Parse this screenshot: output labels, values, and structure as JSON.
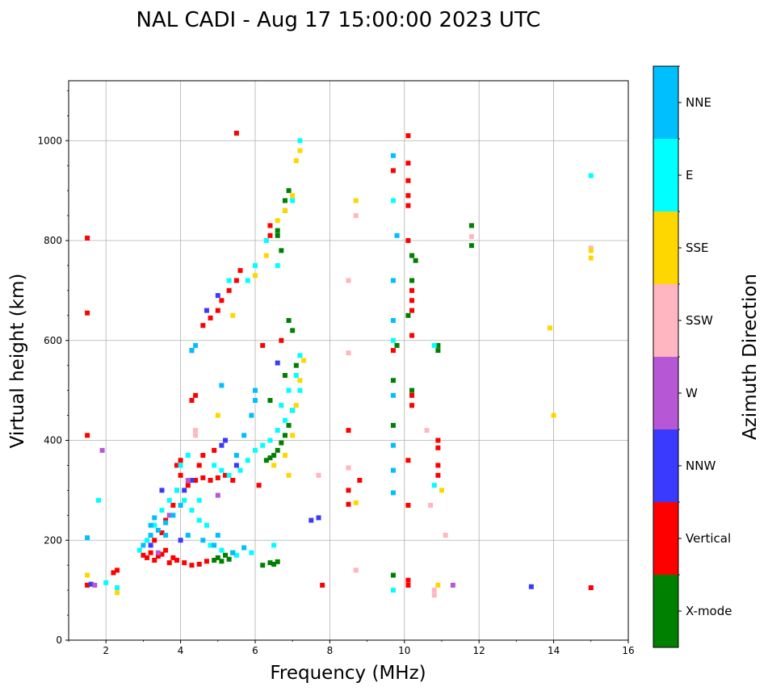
{
  "chart_data": {
    "type": "scatter",
    "title": "NAL CADI - Aug 17 15:00:00 2023 UTC",
    "xlabel": "Frequency (MHz)",
    "ylabel": "Virtual height (km)",
    "xlim": [
      1,
      16
    ],
    "ylim": [
      0,
      1120
    ],
    "xticks": [
      "2",
      "4",
      "6",
      "8",
      "10",
      "12",
      "14",
      "16"
    ],
    "yticks": [
      "0",
      "200",
      "400",
      "600",
      "800",
      "1000"
    ],
    "grid": true,
    "colorbar": {
      "label": "Azimuth Direction",
      "categories": [
        {
          "name": "X-mode",
          "color": "#008000"
        },
        {
          "name": "Vertical",
          "color": "#ff0000"
        },
        {
          "name": "NNW",
          "color": "#3a3aff"
        },
        {
          "name": "W",
          "color": "#b657d6"
        },
        {
          "name": "SSW",
          "color": "#ffb6c1"
        },
        {
          "name": "SSE",
          "color": "#ffd700"
        },
        {
          "name": "E",
          "color": "#00ffff"
        },
        {
          "name": "NNE",
          "color": "#00bfff"
        }
      ]
    },
    "series": [
      {
        "name": "X-mode",
        "points": [
          [
            4.9,
            160
          ],
          [
            5.0,
            165
          ],
          [
            5.1,
            158
          ],
          [
            5.2,
            170
          ],
          [
            5.3,
            162
          ],
          [
            5.4,
            175
          ],
          [
            6.2,
            150
          ],
          [
            6.4,
            155
          ],
          [
            6.5,
            152
          ],
          [
            6.6,
            157
          ],
          [
            6.3,
            360
          ],
          [
            6.4,
            365
          ],
          [
            6.5,
            370
          ],
          [
            6.6,
            380
          ],
          [
            6.7,
            395
          ],
          [
            6.8,
            410
          ],
          [
            6.9,
            430
          ],
          [
            7.0,
            460
          ],
          [
            6.6,
            810
          ],
          [
            6.6,
            820
          ],
          [
            6.8,
            860
          ],
          [
            6.8,
            880
          ],
          [
            6.9,
            900
          ],
          [
            6.7,
            780
          ],
          [
            10.1,
            650
          ],
          [
            10.2,
            720
          ],
          [
            10.3,
            760
          ],
          [
            10.2,
            500
          ],
          [
            10.9,
            580
          ],
          [
            10.9,
            590
          ],
          [
            11.8,
            830
          ],
          [
            11.8,
            790
          ],
          [
            9.7,
            130
          ],
          [
            9.7,
            430
          ],
          [
            9.7,
            520
          ],
          [
            9.8,
            590
          ],
          [
            6.4,
            480
          ],
          [
            6.8,
            530
          ],
          [
            7.1,
            550
          ],
          [
            6.9,
            640
          ],
          [
            7.0,
            620
          ],
          [
            10.2,
            770
          ]
        ]
      },
      {
        "name": "Vertical",
        "points": [
          [
            3.0,
            170
          ],
          [
            3.1,
            165
          ],
          [
            3.2,
            175
          ],
          [
            3.3,
            160
          ],
          [
            3.4,
            168
          ],
          [
            3.5,
            172
          ],
          [
            3.6,
            180
          ],
          [
            3.7,
            155
          ],
          [
            3.8,
            165
          ],
          [
            3.9,
            160
          ],
          [
            4.1,
            155
          ],
          [
            4.3,
            150
          ],
          [
            4.5,
            152
          ],
          [
            4.7,
            158
          ],
          [
            3.3,
            200
          ],
          [
            3.5,
            215
          ],
          [
            3.6,
            240
          ],
          [
            3.8,
            270
          ],
          [
            3.9,
            300
          ],
          [
            4.0,
            330
          ],
          [
            4.2,
            310
          ],
          [
            4.4,
            320
          ],
          [
            4.6,
            325
          ],
          [
            4.8,
            320
          ],
          [
            5.0,
            325
          ],
          [
            5.2,
            330
          ],
          [
            5.4,
            320
          ],
          [
            3.9,
            350
          ],
          [
            4.0,
            360
          ],
          [
            4.5,
            350
          ],
          [
            4.6,
            370
          ],
          [
            4.9,
            380
          ],
          [
            4.3,
            480
          ],
          [
            4.4,
            490
          ],
          [
            4.6,
            630
          ],
          [
            4.8,
            645
          ],
          [
            5.0,
            660
          ],
          [
            5.1,
            680
          ],
          [
            5.3,
            700
          ],
          [
            5.5,
            720
          ],
          [
            5.6,
            740
          ],
          [
            6.1,
            310
          ],
          [
            6.4,
            830
          ],
          [
            6.4,
            810
          ],
          [
            1.5,
            805
          ],
          [
            1.5,
            655
          ],
          [
            1.5,
            410
          ],
          [
            1.5,
            110
          ],
          [
            2.2,
            135
          ],
          [
            2.3,
            140
          ],
          [
            5.5,
            1015
          ],
          [
            8.5,
            420
          ],
          [
            8.5,
            300
          ],
          [
            8.5,
            272
          ],
          [
            10.1,
            1010
          ],
          [
            10.1,
            955
          ],
          [
            10.1,
            920
          ],
          [
            10.1,
            890
          ],
          [
            10.1,
            870
          ],
          [
            10.1,
            800
          ],
          [
            10.2,
            700
          ],
          [
            10.2,
            680
          ],
          [
            10.2,
            660
          ],
          [
            10.2,
            610
          ],
          [
            10.2,
            490
          ],
          [
            10.2,
            470
          ],
          [
            10.1,
            360
          ],
          [
            10.1,
            270
          ],
          [
            10.1,
            120
          ],
          [
            10.1,
            110
          ],
          [
            10.9,
            400
          ],
          [
            10.9,
            385
          ],
          [
            10.9,
            350
          ],
          [
            10.9,
            330
          ],
          [
            15.0,
            105
          ],
          [
            7.8,
            110
          ],
          [
            9.7,
            940
          ],
          [
            9.7,
            580
          ],
          [
            6.2,
            590
          ],
          [
            6.7,
            600
          ],
          [
            8.8,
            320
          ]
        ]
      },
      {
        "name": "NNW",
        "points": [
          [
            4.1,
            300
          ],
          [
            4.3,
            320
          ],
          [
            5.2,
            400
          ],
          [
            5.1,
            390
          ],
          [
            5.5,
            350
          ],
          [
            4.7,
            660
          ],
          [
            5.0,
            690
          ],
          [
            4.3,
            580
          ],
          [
            7.5,
            240
          ],
          [
            7.7,
            245
          ],
          [
            13.4,
            107
          ],
          [
            1.6,
            112
          ],
          [
            6.6,
            555
          ],
          [
            3.5,
            300
          ],
          [
            3.2,
            190
          ],
          [
            4.0,
            200
          ]
        ]
      },
      {
        "name": "W",
        "points": [
          [
            3.4,
            175
          ],
          [
            3.7,
            250
          ],
          [
            4.2,
            320
          ],
          [
            5.0,
            290
          ],
          [
            11.3,
            110
          ],
          [
            1.9,
            380
          ],
          [
            1.7,
            110
          ]
        ]
      },
      {
        "name": "SSW",
        "points": [
          [
            4.4,
            420
          ],
          [
            4.4,
            410
          ],
          [
            8.5,
            720
          ],
          [
            8.5,
            575
          ],
          [
            8.5,
            345
          ],
          [
            8.7,
            140
          ],
          [
            10.6,
            420
          ],
          [
            10.7,
            270
          ],
          [
            11.1,
            210
          ],
          [
            10.8,
            100
          ],
          [
            10.8,
            90
          ],
          [
            11.8,
            808
          ],
          [
            15.0,
            785
          ],
          [
            7.7,
            330
          ],
          [
            8.7,
            850
          ]
        ]
      },
      {
        "name": "SSE",
        "points": [
          [
            5.0,
            450
          ],
          [
            5.4,
            650
          ],
          [
            6.0,
            730
          ],
          [
            6.3,
            770
          ],
          [
            6.6,
            840
          ],
          [
            6.8,
            860
          ],
          [
            7.0,
            890
          ],
          [
            7.1,
            960
          ],
          [
            7.2,
            980
          ],
          [
            6.9,
            330
          ],
          [
            7.0,
            410
          ],
          [
            7.1,
            470
          ],
          [
            7.2,
            520
          ],
          [
            7.3,
            560
          ],
          [
            8.7,
            275
          ],
          [
            8.7,
            880
          ],
          [
            10.9,
            110
          ],
          [
            11.0,
            300
          ],
          [
            13.9,
            625
          ],
          [
            14.0,
            450
          ],
          [
            15.0,
            780
          ],
          [
            15.0,
            765
          ],
          [
            2.3,
            95
          ],
          [
            1.5,
            130
          ],
          [
            6.5,
            350
          ],
          [
            6.8,
            370
          ]
        ]
      },
      {
        "name": "E",
        "points": [
          [
            2.9,
            180
          ],
          [
            3.1,
            200
          ],
          [
            3.3,
            230
          ],
          [
            3.5,
            260
          ],
          [
            3.7,
            280
          ],
          [
            3.9,
            300
          ],
          [
            4.1,
            280
          ],
          [
            4.3,
            260
          ],
          [
            4.5,
            240
          ],
          [
            4.7,
            230
          ],
          [
            4.9,
            350
          ],
          [
            5.1,
            340
          ],
          [
            5.3,
            330
          ],
          [
            5.6,
            340
          ],
          [
            5.8,
            360
          ],
          [
            6.0,
            380
          ],
          [
            6.2,
            390
          ],
          [
            6.4,
            400
          ],
          [
            6.6,
            420
          ],
          [
            6.8,
            440
          ],
          [
            7.0,
            460
          ],
          [
            7.2,
            500
          ],
          [
            7.2,
            570
          ],
          [
            7.1,
            530
          ],
          [
            6.9,
            500
          ],
          [
            6.7,
            470
          ],
          [
            5.9,
            175
          ],
          [
            6.5,
            190
          ],
          [
            5.5,
            170
          ],
          [
            5.8,
            720
          ],
          [
            6.0,
            750
          ],
          [
            6.3,
            800
          ],
          [
            6.6,
            750
          ],
          [
            7.0,
            880
          ],
          [
            7.2,
            1000
          ],
          [
            2.3,
            105
          ],
          [
            2.0,
            115
          ],
          [
            1.8,
            280
          ],
          [
            9.7,
            100
          ],
          [
            9.7,
            880
          ],
          [
            10.8,
            310
          ],
          [
            10.8,
            590
          ],
          [
            4.0,
            350
          ],
          [
            4.2,
            370
          ],
          [
            4.8,
            190
          ],
          [
            5.1,
            180
          ],
          [
            15.0,
            930
          ],
          [
            9.7,
            600
          ],
          [
            5.3,
            720
          ],
          [
            4.5,
            280
          ]
        ]
      },
      {
        "name": "NNE",
        "points": [
          [
            3.0,
            190
          ],
          [
            3.2,
            210
          ],
          [
            3.4,
            220
          ],
          [
            3.6,
            235
          ],
          [
            3.8,
            250
          ],
          [
            4.0,
            270
          ],
          [
            4.2,
            210
          ],
          [
            4.6,
            200
          ],
          [
            5.0,
            210
          ],
          [
            5.4,
            175
          ],
          [
            5.7,
            185
          ],
          [
            4.3,
            580
          ],
          [
            4.4,
            590
          ],
          [
            5.1,
            510
          ],
          [
            5.9,
            450
          ],
          [
            6.0,
            480
          ],
          [
            6.0,
            500
          ],
          [
            5.5,
            370
          ],
          [
            5.7,
            410
          ],
          [
            9.7,
            970
          ],
          [
            9.7,
            720
          ],
          [
            9.7,
            640
          ],
          [
            9.7,
            490
          ],
          [
            9.7,
            390
          ],
          [
            9.7,
            340
          ],
          [
            9.7,
            295
          ],
          [
            9.8,
            810
          ],
          [
            4.9,
            190
          ],
          [
            1.5,
            205
          ],
          [
            3.2,
            230
          ],
          [
            3.3,
            245
          ],
          [
            3.6,
            210
          ]
        ]
      }
    ]
  }
}
